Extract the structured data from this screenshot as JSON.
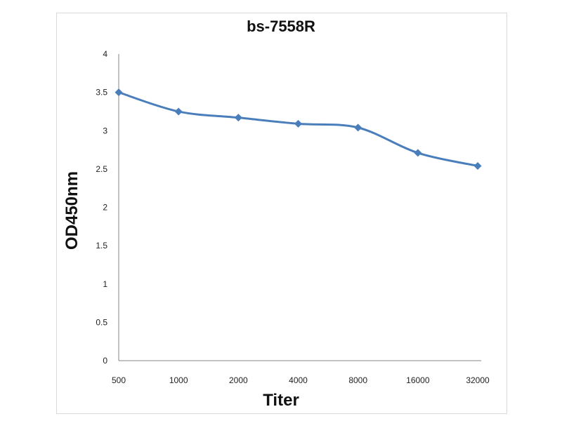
{
  "chart_data": {
    "type": "line",
    "title": "bs-7558R",
    "xlabel": "Titer",
    "ylabel": "OD450nm",
    "categories": [
      "500",
      "1000",
      "2000",
      "4000",
      "8000",
      "16000",
      "32000"
    ],
    "series": [
      {
        "name": "bs-7558R",
        "values": [
          3.5,
          3.25,
          3.17,
          3.09,
          3.04,
          2.71,
          2.54
        ],
        "color": "#4a7ebb"
      }
    ],
    "ylim": [
      0,
      4
    ],
    "yticks": [
      "0",
      "0.5",
      "1",
      "1.5",
      "2",
      "2.5",
      "3",
      "3.5",
      "4"
    ],
    "grid": false,
    "legend": "none"
  }
}
